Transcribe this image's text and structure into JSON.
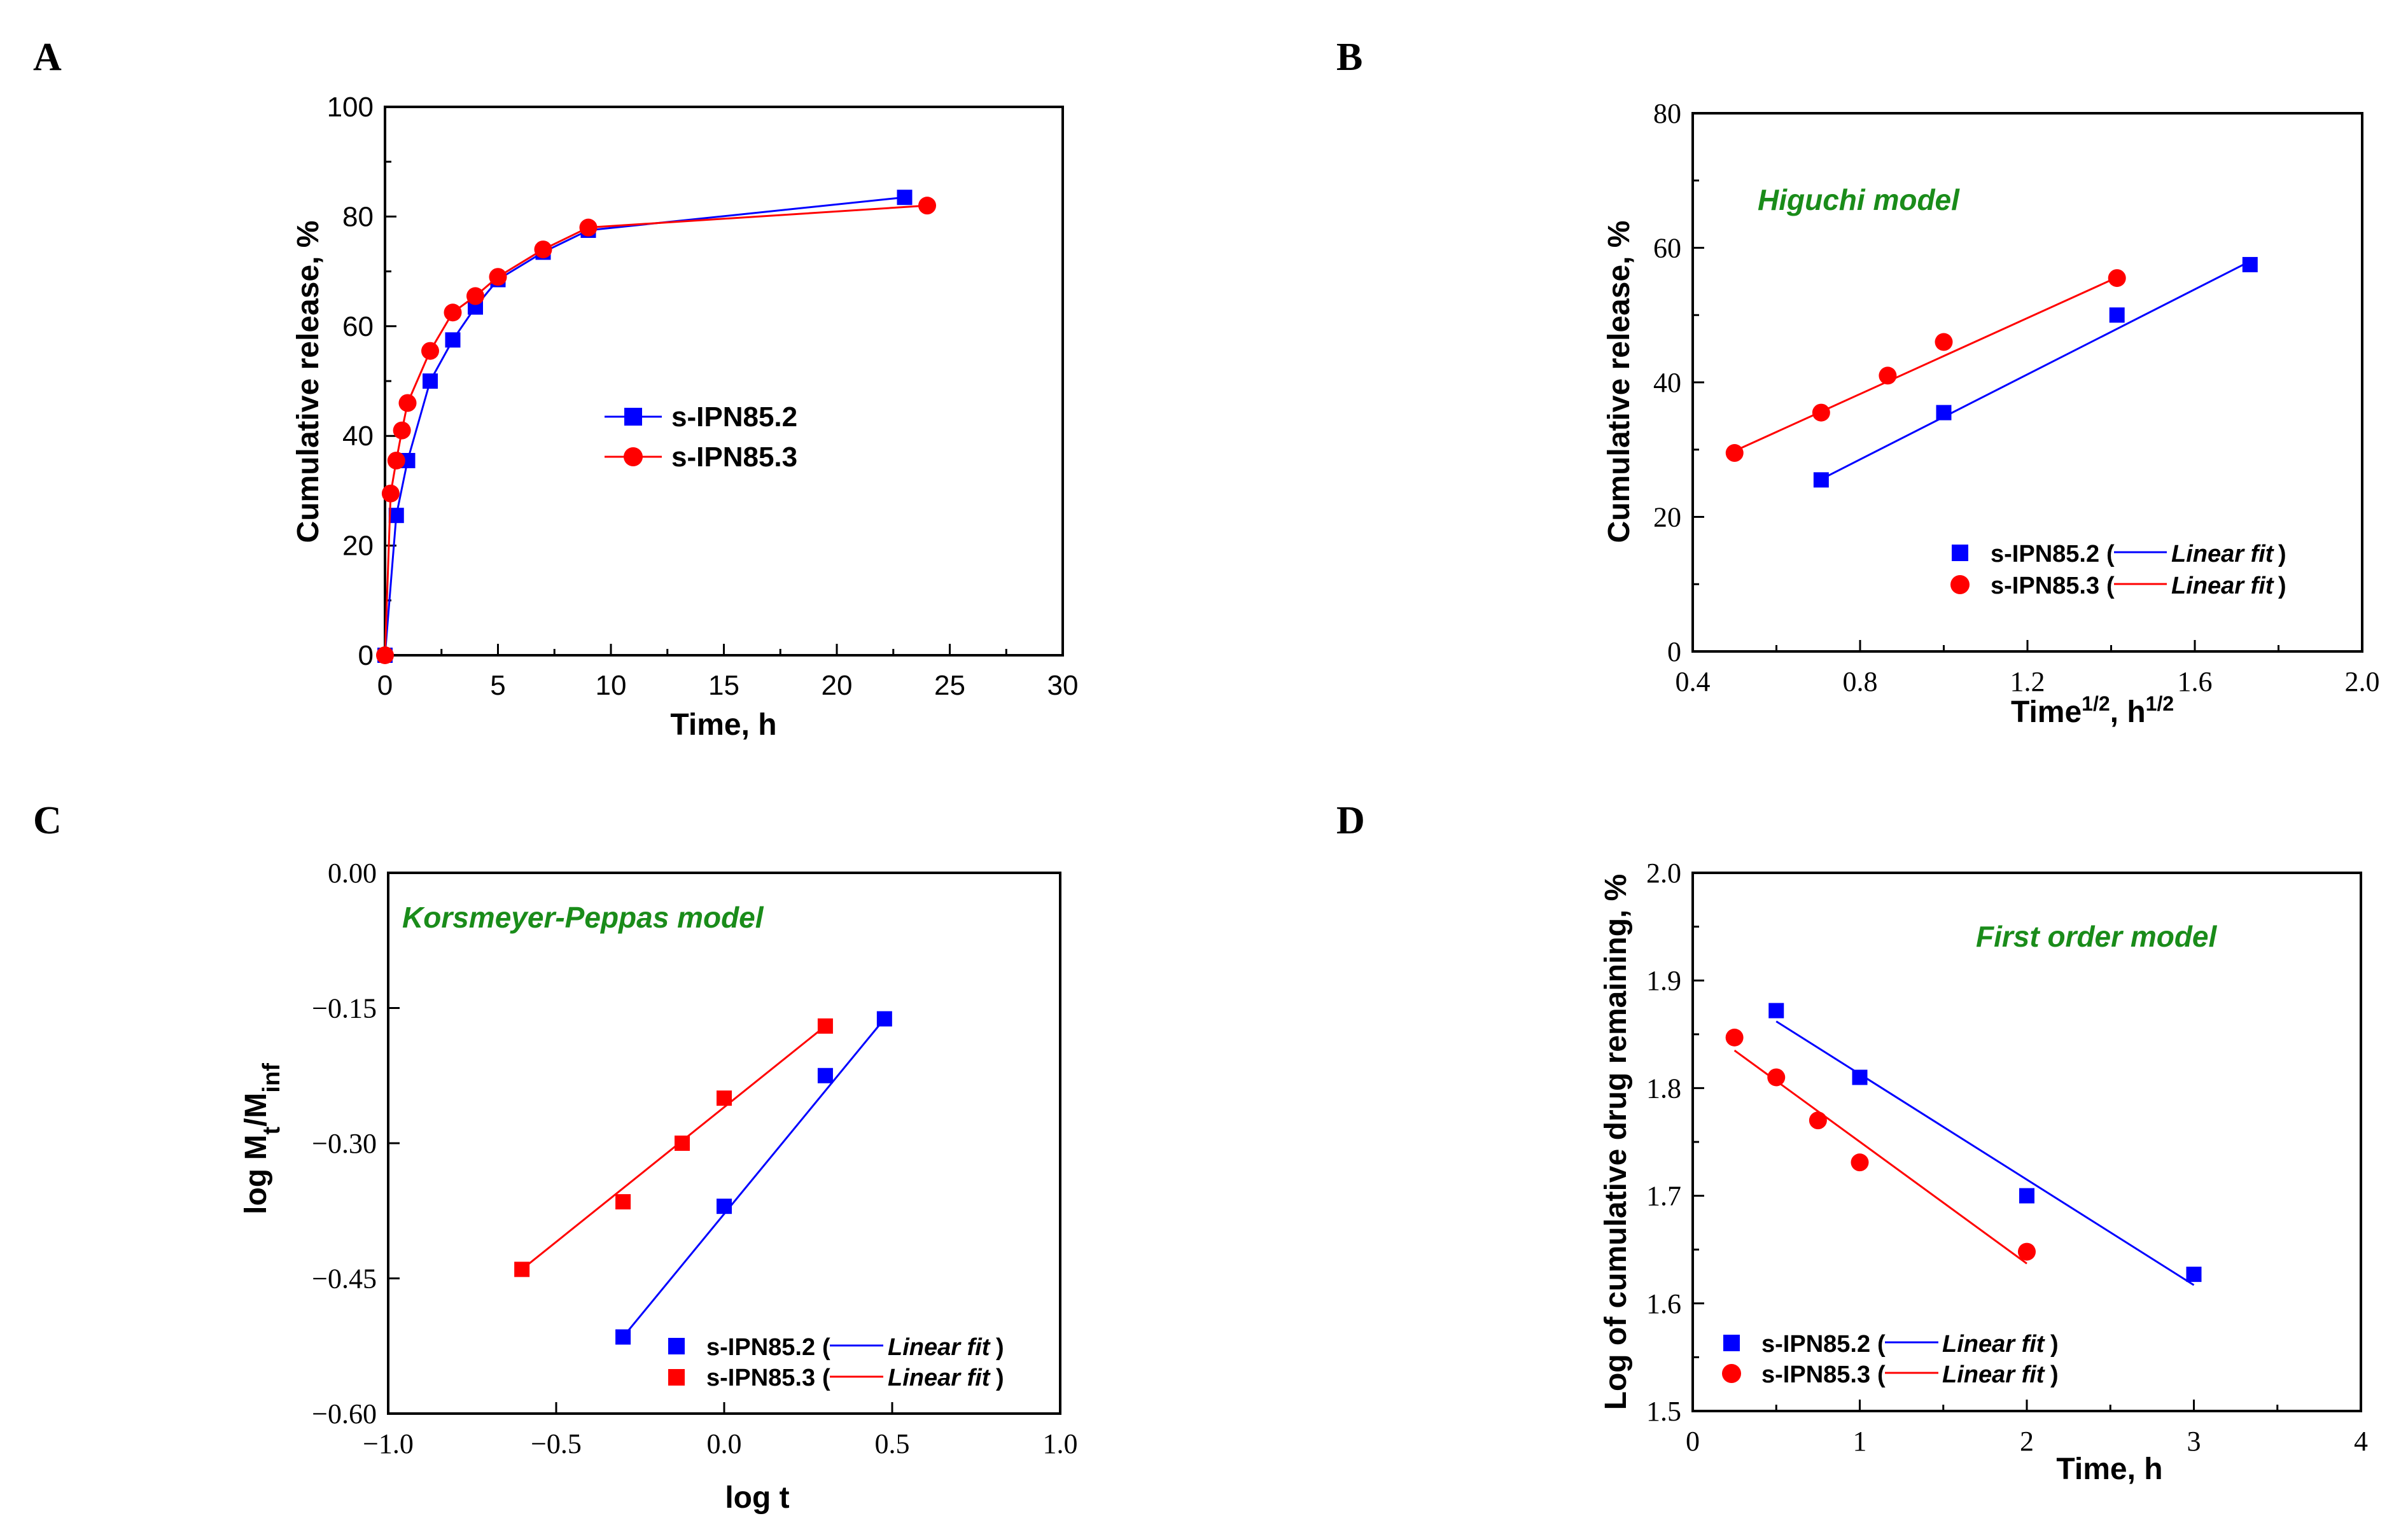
{
  "colors": {
    "series_a": "#0000ff",
    "series_b": "#ff0000",
    "model_title": "#1a8c1a"
  },
  "chart_data": [
    {
      "panel": "A",
      "type": "line",
      "xlabel": "Time, h",
      "ylabel": "Cumulative release, %",
      "xlim": [
        0,
        30
      ],
      "ylim": [
        0,
        100
      ],
      "xticks": [
        0,
        5,
        10,
        15,
        20,
        25,
        30
      ],
      "yticks": [
        0,
        20,
        40,
        60,
        80,
        100
      ],
      "legend_position": "center",
      "series": [
        {
          "name": "s-IPN85.2",
          "marker": "square",
          "color": "#0000ff",
          "x": [
            0,
            0.5,
            1,
            2,
            3,
            4,
            5,
            7,
            9,
            23
          ],
          "y": [
            0,
            25.5,
            35.5,
            50,
            57.5,
            63.5,
            68.5,
            73.5,
            77.5,
            83.5
          ]
        },
        {
          "name": "s-IPN85.3",
          "marker": "circle",
          "color": "#ff0000",
          "x": [
            0,
            0.25,
            0.5,
            0.75,
            1,
            2,
            3,
            4,
            5,
            7,
            9,
            24
          ],
          "y": [
            0,
            29.5,
            35.5,
            41,
            46,
            55.5,
            62.5,
            65.5,
            69,
            74,
            78,
            82
          ]
        }
      ]
    },
    {
      "panel": "B",
      "type": "scatter",
      "title": "Higuchi model",
      "xlabel": "Time",
      "xlabel_sup": "1/2",
      "xlabel_mid": ", h",
      "xlabel_sup2": "1/2",
      "ylabel": "Cumulative release, %",
      "xlim": [
        0.4,
        2.0
      ],
      "ylim": [
        0,
        80
      ],
      "xticks": [
        "0.4",
        "0.8",
        "1.2",
        "1.6",
        "2.0"
      ],
      "yticks": [
        "0",
        "20",
        "40",
        "60",
        "80"
      ],
      "legend_position": "bottom-right",
      "fit_label": "Linear fit",
      "series": [
        {
          "name": "s-IPN85.2",
          "marker": "square",
          "color": "#0000ff",
          "x": [
            0.707,
            1.0,
            1.414,
            1.732
          ],
          "y": [
            25.5,
            35.5,
            50,
            57.5
          ],
          "fit": {
            "x": [
              0.707,
              1.732
            ],
            "y": [
              25.6,
              58.0
            ]
          }
        },
        {
          "name": "s-IPN85.3",
          "marker": "circle",
          "color": "#ff0000",
          "x": [
            0.5,
            0.707,
            0.866,
            1.0,
            1.414
          ],
          "y": [
            29.5,
            35.5,
            41,
            46,
            55.5
          ],
          "fit": {
            "x": [
              0.5,
              1.414
            ],
            "y": [
              29.8,
              55.6
            ]
          }
        }
      ]
    },
    {
      "panel": "C",
      "type": "scatter",
      "title": "Korsmeyer-Peppas model",
      "xlabel": "log t",
      "ylabel_main": "log M",
      "ylabel_sub1": "t",
      "ylabel_mid": "/M",
      "ylabel_sub2": "inf",
      "xlim": [
        -1.0,
        1.0
      ],
      "ylim": [
        -0.6,
        0.0
      ],
      "xticks": [
        "−1.0",
        "−0.5",
        "0.0",
        "0.5",
        "1.0"
      ],
      "yticks": [
        "−0.60",
        "−0.45",
        "−0.30",
        "−0.15",
        "0.00"
      ],
      "legend_position": "bottom-right",
      "fit_label": "Linear fit",
      "series": [
        {
          "name": "s-IPN85.2",
          "marker": "square",
          "color": "#0000ff",
          "x": [
            -0.301,
            0.0,
            0.301,
            0.477
          ],
          "y": [
            -0.515,
            -0.37,
            -0.225,
            -0.162
          ],
          "fit": {
            "x": [
              -0.301,
              0.477
            ],
            "y": [
              -0.515,
              -0.162
            ]
          }
        },
        {
          "name": "s-IPN85.3",
          "marker": "square",
          "color": "#ff0000",
          "x": [
            -0.602,
            -0.301,
            -0.125,
            0.0,
            0.301
          ],
          "y": [
            -0.44,
            -0.365,
            -0.3,
            -0.25,
            -0.17
          ],
          "fit": {
            "x": [
              -0.602,
              0.301
            ],
            "y": [
              -0.44,
              -0.17
            ]
          }
        }
      ]
    },
    {
      "panel": "D",
      "type": "scatter",
      "title": "First order model",
      "xlabel": "Time, h",
      "ylabel": "Log of cumulative drug remaining, %",
      "xlim": [
        0,
        4
      ],
      "ylim": [
        1.5,
        2.0
      ],
      "xticks": [
        "0",
        "1",
        "2",
        "3",
        "4"
      ],
      "yticks": [
        "1.5",
        "1.6",
        "1.7",
        "1.8",
        "1.9",
        "2.0"
      ],
      "legend_position": "bottom-left",
      "fit_label": "Linear fit",
      "series": [
        {
          "name": "s-IPN85.2",
          "marker": "square",
          "color": "#0000ff",
          "x": [
            0.5,
            1,
            2,
            3
          ],
          "y": [
            1.872,
            1.81,
            1.7,
            1.627
          ],
          "fit": {
            "x": [
              0.5,
              3
            ],
            "y": [
              1.862,
              1.617
            ]
          }
        },
        {
          "name": "s-IPN85.3",
          "marker": "circle",
          "color": "#ff0000",
          "x": [
            0.25,
            0.5,
            0.75,
            1,
            2
          ],
          "y": [
            1.847,
            1.81,
            1.77,
            1.731,
            1.648
          ],
          "fit": {
            "x": [
              0.25,
              2
            ],
            "y": [
              1.835,
              1.637
            ]
          }
        }
      ]
    }
  ]
}
